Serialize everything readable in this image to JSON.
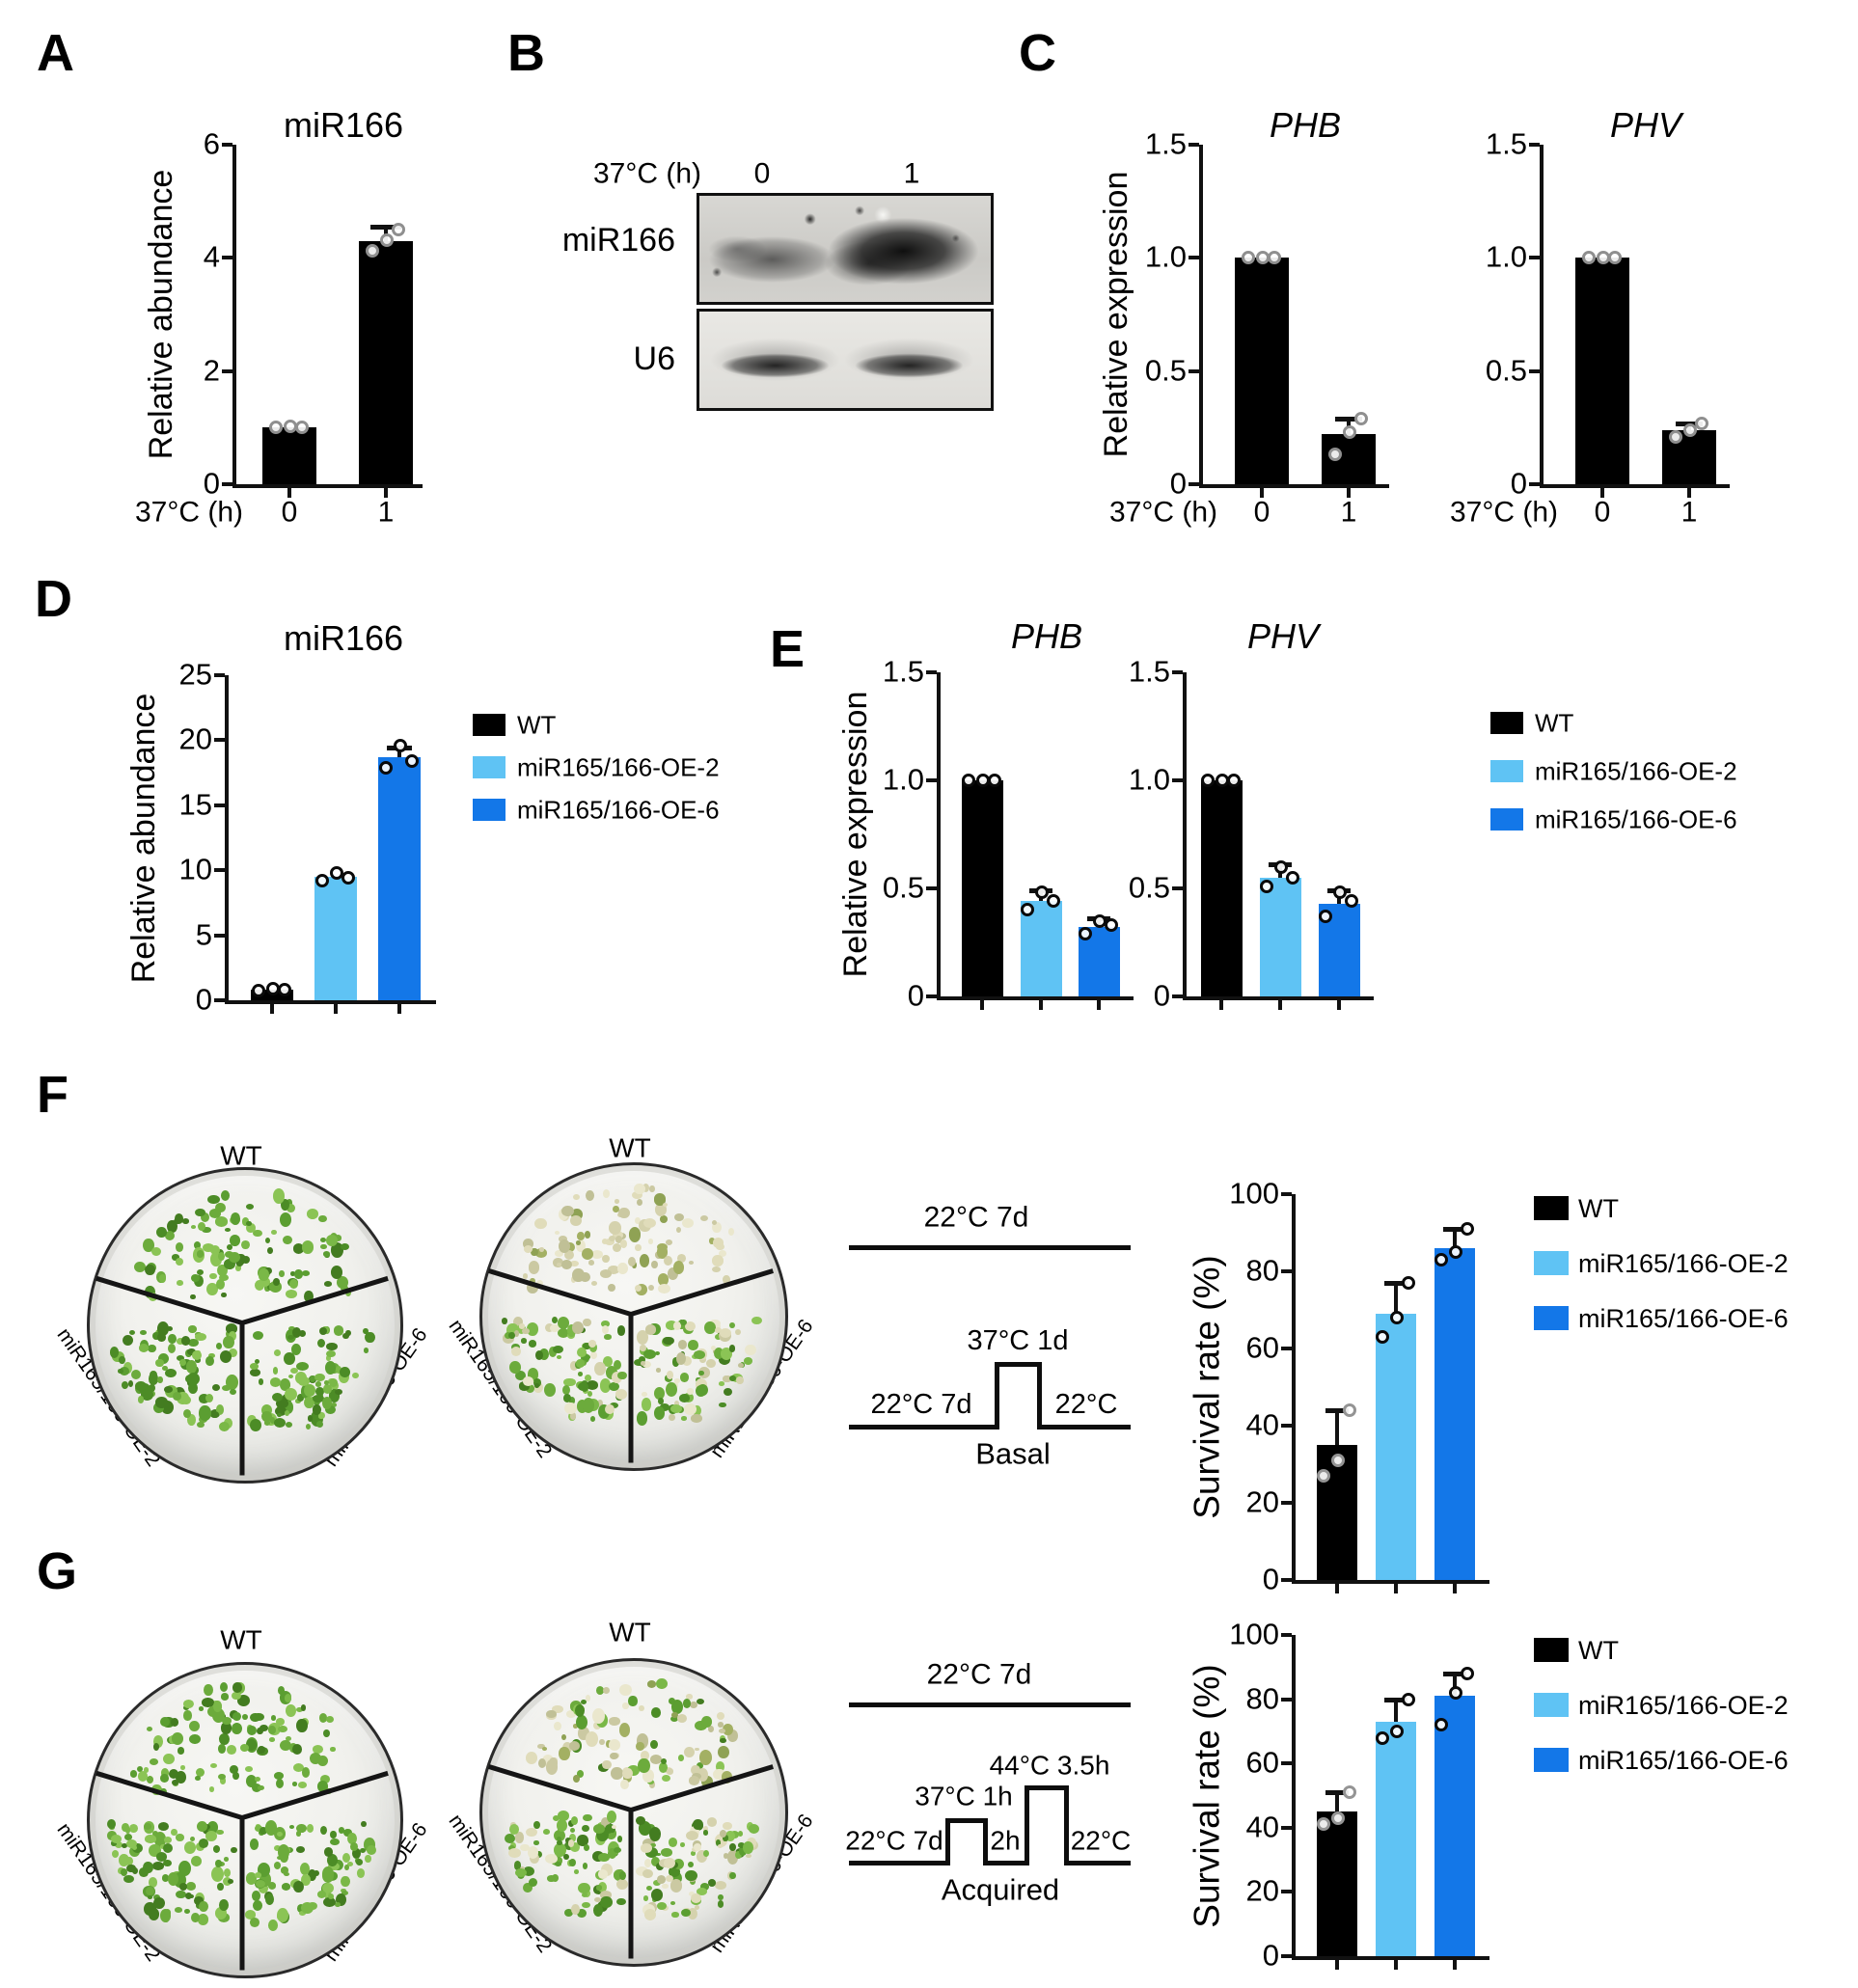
{
  "panel_labels": {
    "A": "A",
    "B": "B",
    "C": "C",
    "D": "D",
    "E": "E",
    "F": "F",
    "G": "G"
  },
  "colors": {
    "black": "#000000",
    "light_blue": "#5FC3F4",
    "blue": "#1377E8"
  },
  "legend": {
    "entries": [
      {
        "label": "WT",
        "color": "#000000"
      },
      {
        "label": "miR165/166-OE-2",
        "color": "#5FC3F4"
      },
      {
        "label": "miR165/166-OE-6",
        "color": "#1377E8"
      }
    ]
  },
  "blot": {
    "temp_label": "37°C (h)",
    "lanes": [
      "0",
      "1"
    ],
    "probe_labels": [
      "miR166",
      "U6"
    ]
  },
  "schemes": {
    "basal": {
      "control_label": "22°C 7d",
      "pre": "22°C 7d",
      "pulse": "37°C 1d",
      "post": "22°C",
      "name": "Basal"
    },
    "acquired": {
      "control_label": "22°C 7d",
      "pre": "22°C 7d",
      "pulse1": "37°C 1h",
      "gap": "2h",
      "pulse2": "44°C 3.5h",
      "post": "22°C",
      "name": "Acquired"
    }
  },
  "plates": {
    "sector_labels": {
      "top": "WT",
      "left": "miR165/166-OE-2",
      "right": "miR165/166-OE-6"
    },
    "F": [
      {
        "sectors": {
          "top": "green",
          "left": "green",
          "right": "green"
        }
      },
      {
        "sectors": {
          "top": "bleached",
          "left": "mostly_green",
          "right": "mixed"
        }
      }
    ],
    "G": [
      {
        "sectors": {
          "top": "green",
          "left": "green",
          "right": "green"
        }
      },
      {
        "sectors": {
          "top": "bleached_mixed",
          "left": "mostly_green",
          "right": "mixed"
        }
      }
    ]
  },
  "chart_data": [
    {
      "id": "A",
      "type": "bar",
      "title": "miR166",
      "italic_title": false,
      "ylabel": "Relative abundance",
      "ylim": [
        0,
        6
      ],
      "yticks": [
        0,
        2,
        4,
        6
      ],
      "ytick_labels": [
        "0",
        "2",
        "4",
        "6"
      ],
      "x_prefix": "37°C (h)",
      "categories": [
        "0",
        "1"
      ],
      "point_color": "#8f8f8f",
      "series": [
        {
          "name": "0",
          "value": 1.0,
          "color": "#000000",
          "error_top": null,
          "points": [
            1.0,
            1.02,
            1.0
          ]
        },
        {
          "name": "1",
          "value": 4.3,
          "color": "#000000",
          "error_top": 4.55,
          "points": [
            4.12,
            4.32,
            4.5
          ]
        }
      ]
    },
    {
      "id": "C-PHB",
      "type": "bar",
      "title": "PHB",
      "italic_title": true,
      "ylabel": "Relative expression",
      "ylim": [
        0,
        1.5
      ],
      "yticks": [
        0,
        0.5,
        1.0,
        1.5
      ],
      "ytick_labels": [
        "0",
        "0.5",
        "1.0",
        "1.5"
      ],
      "x_prefix": "37°C (h)",
      "categories": [
        "0",
        "1"
      ],
      "point_color": "#8f8f8f",
      "series": [
        {
          "name": "0",
          "value": 1.0,
          "color": "#000000",
          "error_top": null,
          "points": [
            1.0,
            1.0,
            1.0
          ]
        },
        {
          "name": "1",
          "value": 0.22,
          "color": "#000000",
          "error_top": 0.29,
          "points": [
            0.13,
            0.23,
            0.29
          ]
        }
      ]
    },
    {
      "id": "C-PHV",
      "type": "bar",
      "title": "PHV",
      "italic_title": true,
      "ylabel": null,
      "ylim": [
        0,
        1.5
      ],
      "yticks": [
        0,
        0.5,
        1.0,
        1.5
      ],
      "ytick_labels": [
        "0",
        "0.5",
        "1.0",
        "1.5"
      ],
      "x_prefix": "37°C (h)",
      "categories": [
        "0",
        "1"
      ],
      "point_color": "#8f8f8f",
      "series": [
        {
          "name": "0",
          "value": 1.0,
          "color": "#000000",
          "error_top": null,
          "points": [
            1.0,
            1.0,
            1.0
          ]
        },
        {
          "name": "1",
          "value": 0.24,
          "color": "#000000",
          "error_top": 0.27,
          "points": [
            0.21,
            0.24,
            0.27
          ]
        }
      ]
    },
    {
      "id": "D",
      "type": "bar",
      "title": "miR166",
      "italic_title": false,
      "ylabel": "Relative abundance",
      "ylim": [
        0,
        25
      ],
      "yticks": [
        0,
        5,
        10,
        15,
        20,
        25
      ],
      "ytick_labels": [
        "0",
        "5",
        "10",
        "15",
        "20",
        "25"
      ],
      "x_prefix": null,
      "categories": null,
      "point_color": "#0a0a0a",
      "series": [
        {
          "name": "WT",
          "value": 0.8,
          "color": "#000000",
          "error_top": null,
          "points": [
            0.75,
            0.88,
            0.8
          ]
        },
        {
          "name": "miR165/166-OE-2",
          "value": 9.5,
          "color": "#5FC3F4",
          "error_top": null,
          "points": [
            9.2,
            9.8,
            9.4
          ]
        },
        {
          "name": "miR165/166-OE-6",
          "value": 18.7,
          "color": "#1377E8",
          "error_top": 19.4,
          "points": [
            17.9,
            19.6,
            18.4
          ]
        }
      ]
    },
    {
      "id": "E-PHB",
      "type": "bar",
      "title": "PHB",
      "italic_title": true,
      "ylabel": "Relative expression",
      "ylim": [
        0,
        1.5
      ],
      "yticks": [
        0,
        0.5,
        1.0,
        1.5
      ],
      "ytick_labels": [
        "0",
        "0.5",
        "1.0",
        "1.5"
      ],
      "x_prefix": null,
      "categories": null,
      "point_color": "#0a0a0a",
      "series": [
        {
          "name": "WT",
          "value": 1.0,
          "color": "#000000",
          "error_top": null,
          "points": [
            1.0,
            1.0,
            1.0
          ]
        },
        {
          "name": "miR165/166-OE-2",
          "value": 0.44,
          "color": "#5FC3F4",
          "error_top": 0.49,
          "points": [
            0.4,
            0.48,
            0.44
          ]
        },
        {
          "name": "miR165/166-OE-6",
          "value": 0.32,
          "color": "#1377E8",
          "error_top": 0.36,
          "points": [
            0.29,
            0.35,
            0.33
          ]
        }
      ]
    },
    {
      "id": "E-PHV",
      "type": "bar",
      "title": "PHV",
      "italic_title": true,
      "ylabel": null,
      "ylim": [
        0,
        1.5
      ],
      "yticks": [
        0,
        0.5,
        1.0,
        1.5
      ],
      "ytick_labels": [
        "0",
        "0.5",
        "1.0",
        "1.5"
      ],
      "x_prefix": null,
      "categories": null,
      "point_color": "#0a0a0a",
      "series": [
        {
          "name": "WT",
          "value": 1.0,
          "color": "#000000",
          "error_top": null,
          "points": [
            1.0,
            1.0,
            1.0
          ]
        },
        {
          "name": "miR165/166-OE-2",
          "value": 0.55,
          "color": "#5FC3F4",
          "error_top": 0.61,
          "points": [
            0.51,
            0.6,
            0.55
          ]
        },
        {
          "name": "miR165/166-OE-6",
          "value": 0.43,
          "color": "#1377E8",
          "error_top": 0.49,
          "points": [
            0.37,
            0.48,
            0.44
          ]
        }
      ]
    },
    {
      "id": "F-survival",
      "type": "bar",
      "title": null,
      "italic_title": false,
      "ylabel": "Survival rate (%)",
      "ylim": [
        0,
        100
      ],
      "yticks": [
        0,
        20,
        40,
        60,
        80,
        100
      ],
      "ytick_labels": [
        "0",
        "20",
        "40",
        "60",
        "80",
        "100"
      ],
      "x_prefix": null,
      "categories": null,
      "point_color": "#0a0a0a",
      "condition": "Basal",
      "series": [
        {
          "name": "WT",
          "value": 35,
          "color": "#000000",
          "error_top": 44,
          "points": [
            27,
            31,
            44
          ],
          "point_color": "#949494"
        },
        {
          "name": "miR165/166-OE-2",
          "value": 69,
          "color": "#5FC3F4",
          "error_top": 77,
          "points": [
            63,
            68,
            77
          ]
        },
        {
          "name": "miR165/166-OE-6",
          "value": 86,
          "color": "#1377E8",
          "error_top": 91,
          "points": [
            83,
            85,
            91
          ]
        }
      ]
    },
    {
      "id": "G-survival",
      "type": "bar",
      "title": null,
      "italic_title": false,
      "ylabel": "Survival rate (%)",
      "ylim": [
        0,
        100
      ],
      "yticks": [
        0,
        20,
        40,
        60,
        80,
        100
      ],
      "ytick_labels": [
        "0",
        "20",
        "40",
        "60",
        "80",
        "100"
      ],
      "x_prefix": null,
      "categories": null,
      "point_color": "#0a0a0a",
      "condition": "Acquired",
      "series": [
        {
          "name": "WT",
          "value": 45,
          "color": "#000000",
          "error_top": 51,
          "points": [
            41,
            43,
            51
          ],
          "point_color": "#949494"
        },
        {
          "name": "miR165/166-OE-2",
          "value": 73,
          "color": "#5FC3F4",
          "error_top": 80,
          "points": [
            68,
            70,
            80
          ]
        },
        {
          "name": "miR165/166-OE-6",
          "value": 81,
          "color": "#1377E8",
          "error_top": 88,
          "points": [
            72,
            82,
            88
          ]
        }
      ]
    }
  ]
}
